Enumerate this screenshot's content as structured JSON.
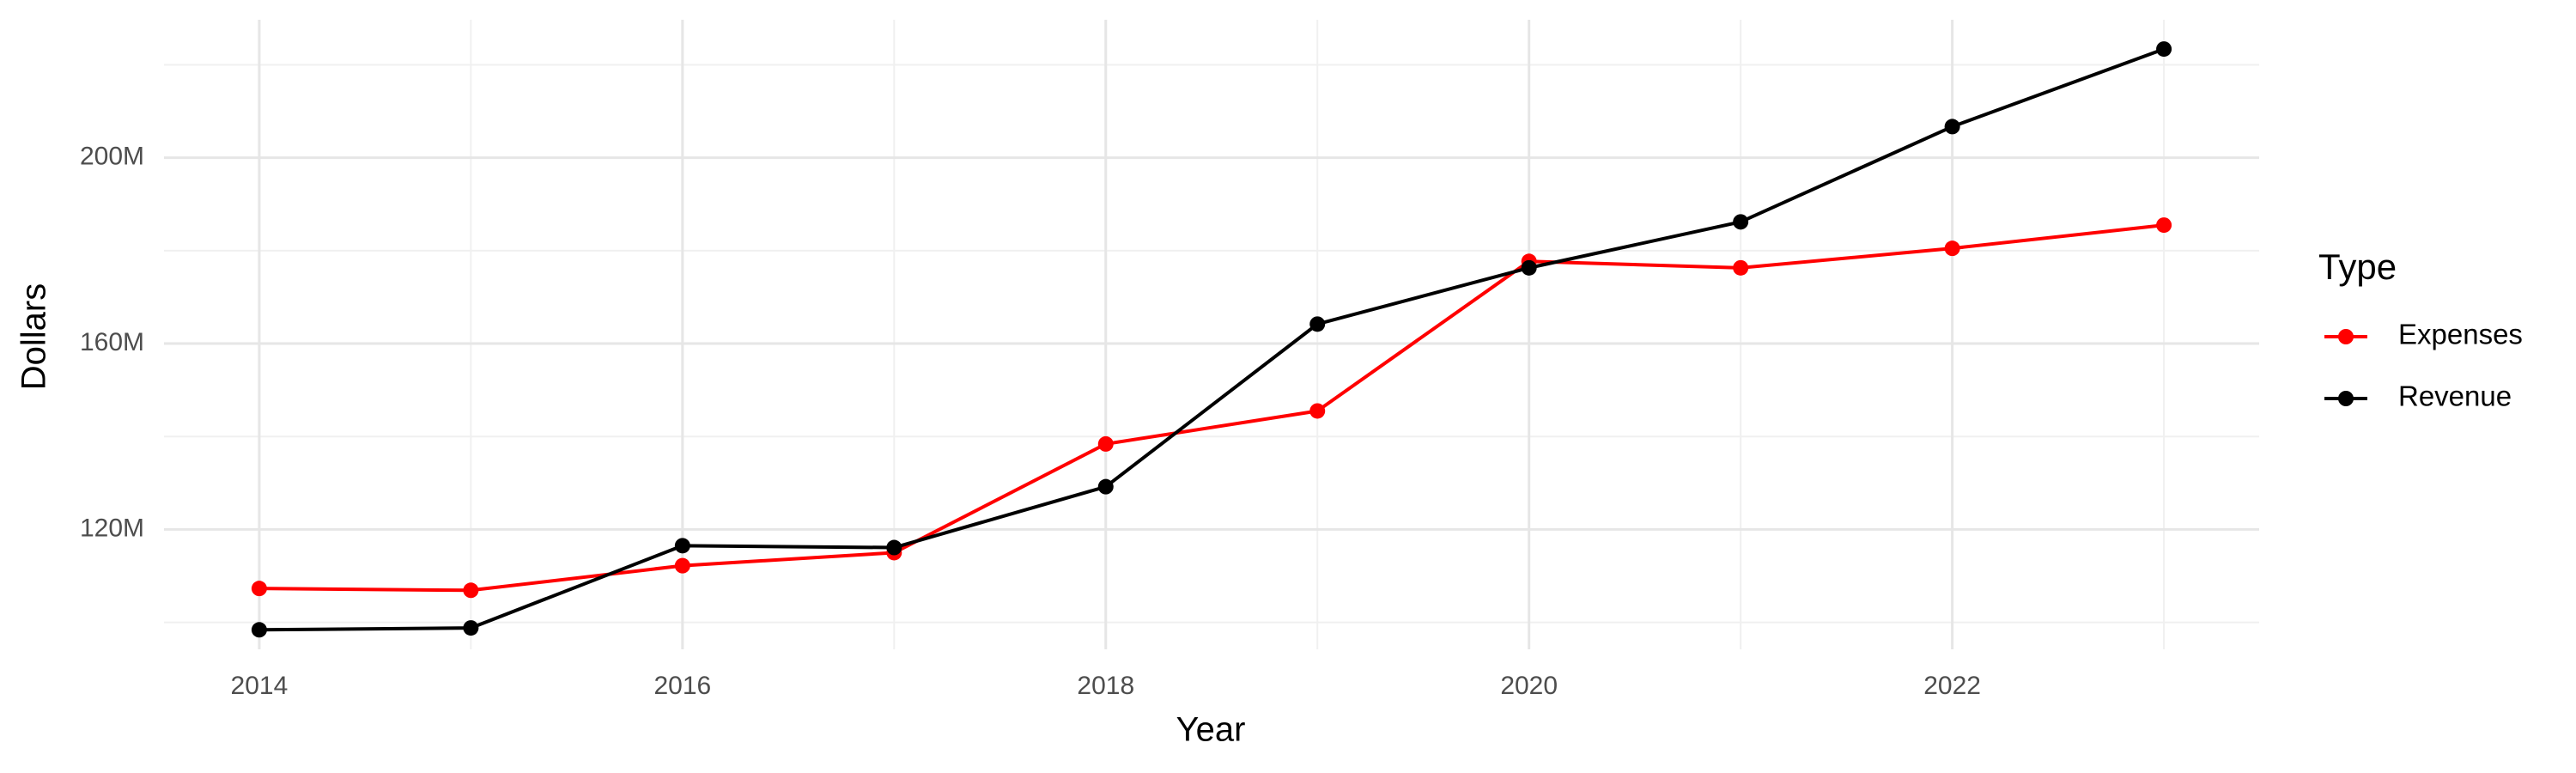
{
  "chart_data": {
    "type": "line",
    "x_label": "Year",
    "y_label": "Dollars",
    "legend_title": "Type",
    "legend": "right",
    "x": [
      2014,
      2015,
      2016,
      2017,
      2018,
      2019,
      2020,
      2021,
      2022,
      2023
    ],
    "series": [
      {
        "name": "Expenses",
        "color": "#ff0000",
        "values": [
          107300000,
          106900000,
          112200000,
          115000000,
          138400000,
          145500000,
          177700000,
          176300000,
          180500000,
          185500000
        ]
      },
      {
        "name": "Revenue",
        "color": "#000000",
        "values": [
          98400000,
          98800000,
          116500000,
          116100000,
          129200000,
          164200000,
          176300000,
          186200000,
          206700000,
          223400000
        ]
      }
    ],
    "xlim": [
      2013.55,
      2023.45
    ],
    "xticks": [
      2014,
      2016,
      2018,
      2020,
      2022
    ],
    "x_minor_ticks": [
      2015,
      2017,
      2019,
      2021,
      2023
    ],
    "ylim": [
      94200000,
      229700000
    ],
    "yticks": [
      {
        "value": 120000000,
        "label": "120M"
      },
      {
        "value": 160000000,
        "label": "160M"
      },
      {
        "value": 200000000,
        "label": "200M"
      }
    ],
    "y_minor_ticks": [
      100000000,
      140000000,
      180000000,
      220000000
    ],
    "grid": true
  }
}
